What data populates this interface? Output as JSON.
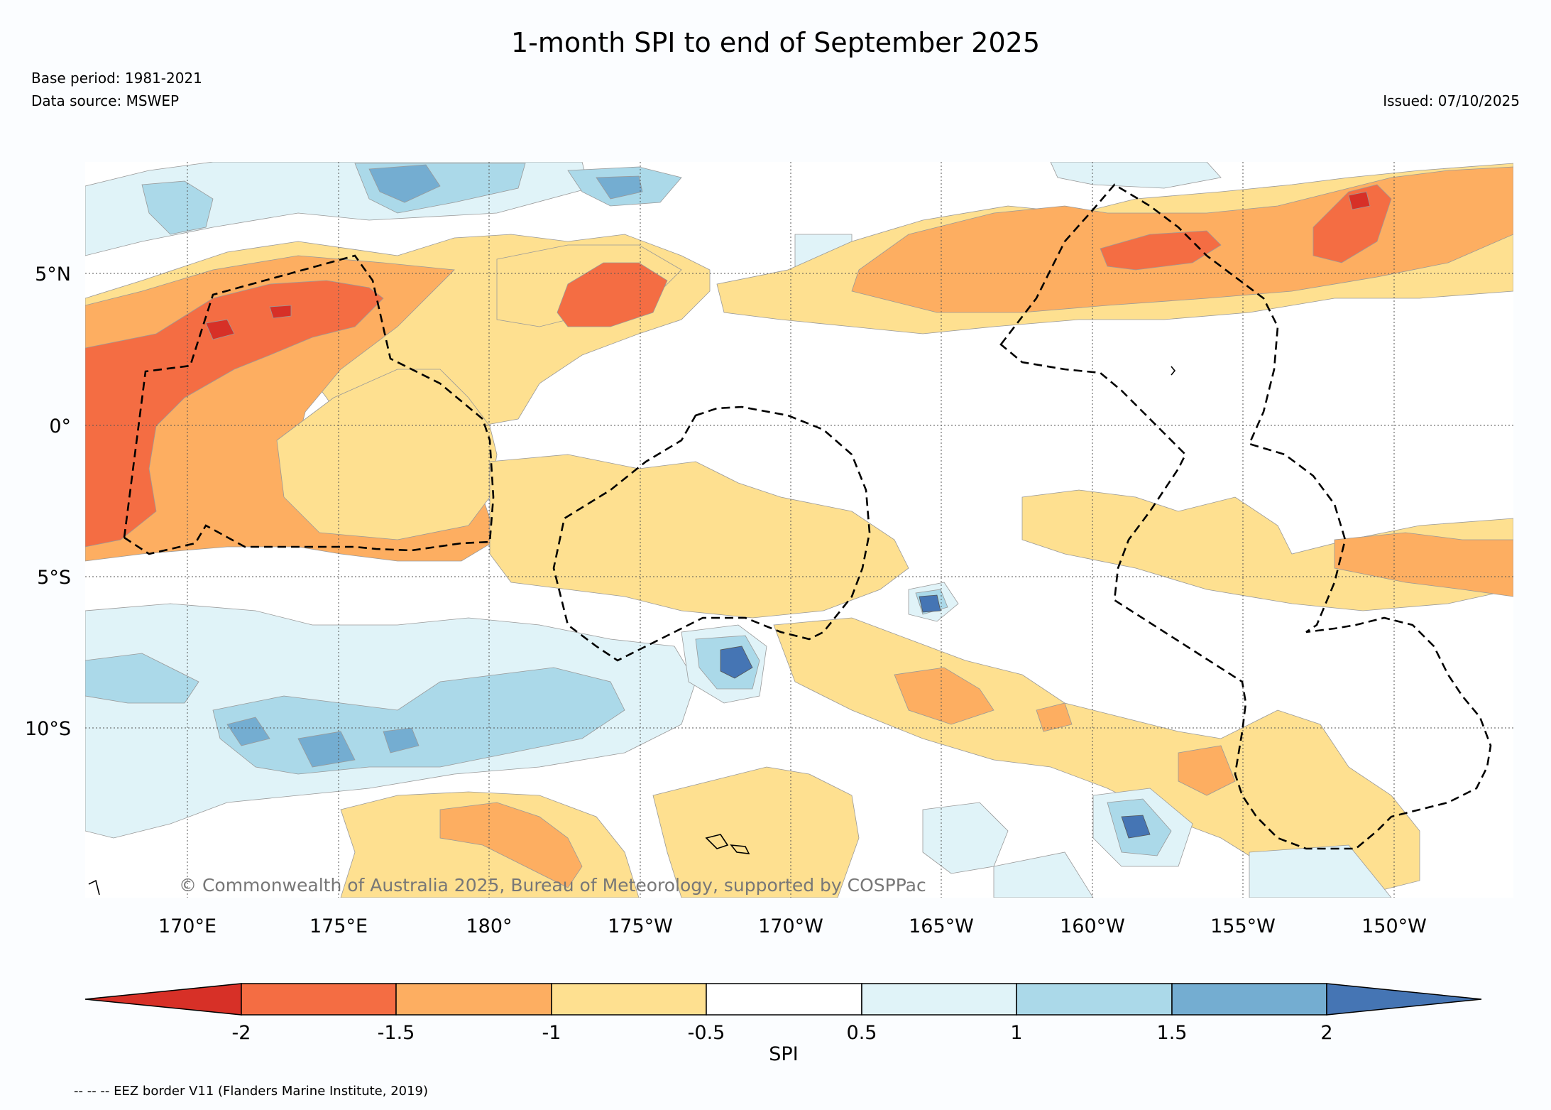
{
  "header": {
    "title": "1-month SPI to end of September 2025",
    "base_period": "Base period: 1981-2021",
    "data_source": "Data source: MSWEP",
    "issued": "Issued: 07/10/2025"
  },
  "map": {
    "lat_labels": [
      "5°N",
      "0°",
      "5°S",
      "10°S"
    ],
    "lon_labels": [
      "170°E",
      "175°E",
      "180°",
      "175°W",
      "170°W",
      "165°W",
      "160°W",
      "155°W",
      "150°W"
    ],
    "copyright": "© Commonwealth of Australia 2025, Bureau of Meteorology, supported by COSPPac",
    "extent": {
      "lon_min": 166.6,
      "lon_max": 213.9,
      "lat_min": -15.8,
      "lat_max": 8.7
    }
  },
  "legend": {
    "title": "SPI",
    "ticks": [
      "-2",
      "-1.5",
      "-1",
      "-0.5",
      "0.5",
      "1",
      "1.5",
      "2"
    ],
    "colors": [
      "#d73027",
      "#f46d43",
      "#fdae61",
      "#fee090",
      "#ffffff",
      "#e0f3f8",
      "#abd9e9",
      "#74add1",
      "#4575b4"
    ]
  },
  "footnote": "-- -- -- EEZ border V11 (Flanders Marine Institute, 2019)"
}
